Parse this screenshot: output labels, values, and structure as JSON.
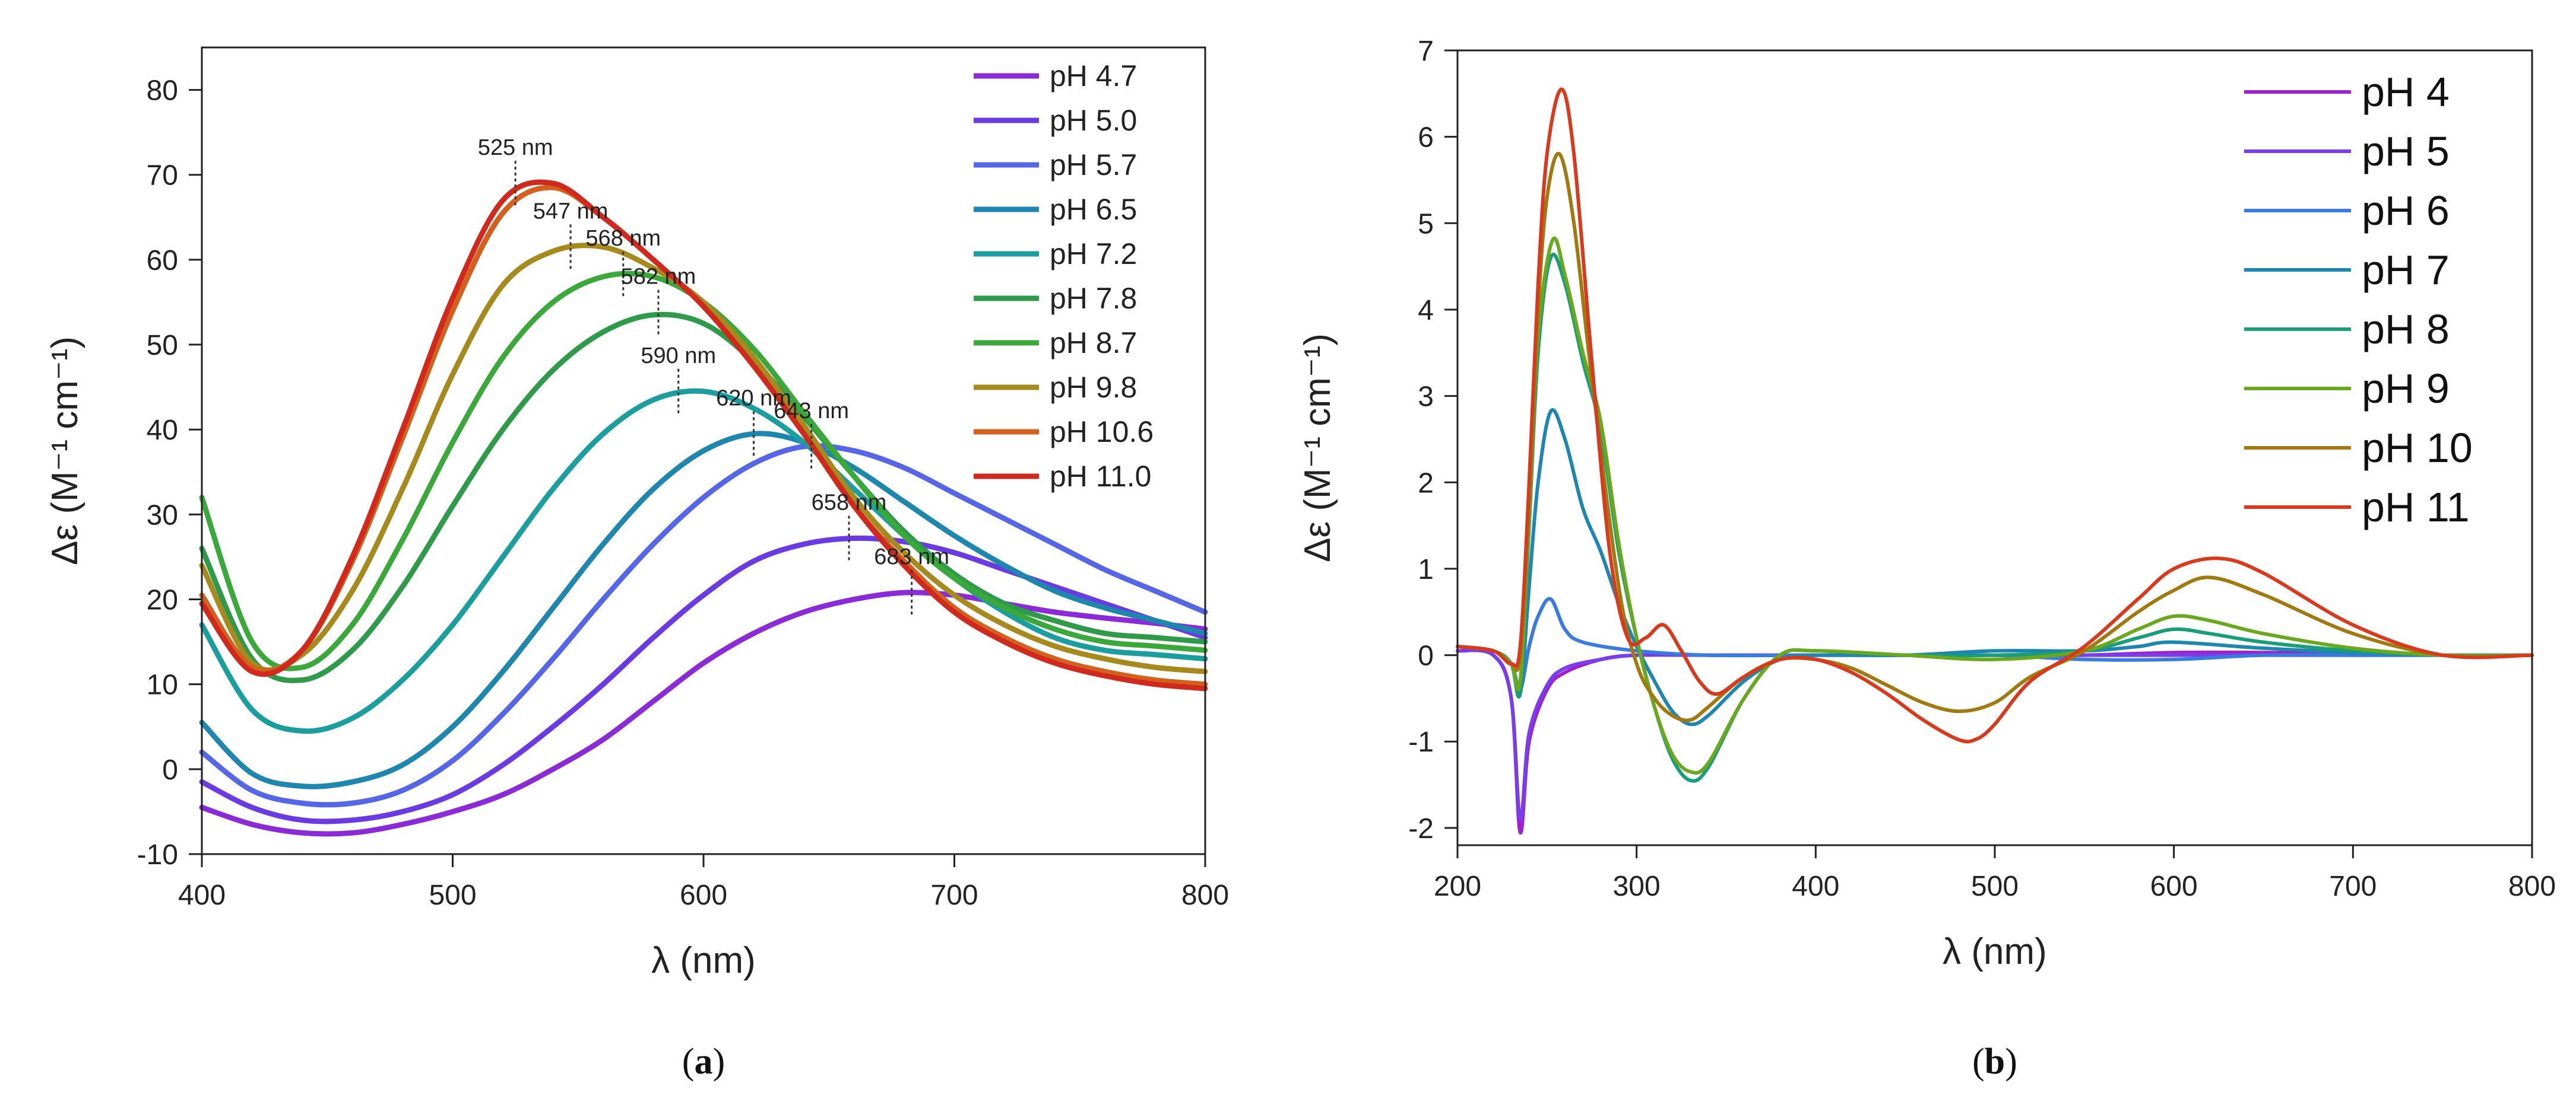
{
  "chart_data": [
    {
      "type": "line",
      "panel": "a",
      "caption_open": "(",
      "caption_letter": "a",
      "caption_close": ")",
      "xlabel": "λ (nm)",
      "ylabel": "Δε (M⁻¹ cm⁻¹)",
      "xlim": [
        400,
        800
      ],
      "ylim": [
        -10,
        85
      ],
      "xticks": [
        400,
        500,
        600,
        700,
        800
      ],
      "yticks": [
        -10,
        0,
        10,
        20,
        30,
        40,
        50,
        60,
        70,
        80
      ],
      "grid": false,
      "legend_position": "top-right",
      "series": [
        {
          "name": "pH 4.7",
          "color": "#8a2bd6",
          "x": [
            400,
            420,
            440,
            460,
            480,
            500,
            520,
            540,
            560,
            580,
            600,
            620,
            640,
            660,
            680,
            700,
            720,
            740,
            760,
            780,
            800
          ],
          "y": [
            -4.5,
            -6.5,
            -7.5,
            -7.5,
            -6.5,
            -5.0,
            -3.0,
            0.0,
            3.5,
            8.0,
            12.5,
            16.0,
            18.5,
            20.0,
            20.8,
            20.5,
            19.5,
            18.5,
            17.8,
            17.2,
            16.5
          ]
        },
        {
          "name": "pH 5.0",
          "color": "#6a3be0",
          "x": [
            400,
            420,
            440,
            460,
            480,
            500,
            520,
            540,
            560,
            580,
            600,
            620,
            640,
            660,
            680,
            700,
            720,
            740,
            760,
            780,
            800
          ],
          "y": [
            -1.5,
            -4.5,
            -6.0,
            -6.0,
            -5.0,
            -3.0,
            0.5,
            5.0,
            10.0,
            15.5,
            20.5,
            24.5,
            26.5,
            27.2,
            26.8,
            25.5,
            23.5,
            21.5,
            19.5,
            17.5,
            15.5
          ]
        },
        {
          "name": "pH 5.7",
          "color": "#5566e6",
          "x": [
            400,
            420,
            440,
            460,
            480,
            500,
            520,
            540,
            560,
            580,
            600,
            620,
            640,
            660,
            680,
            700,
            720,
            740,
            760,
            780,
            800
          ],
          "y": [
            2.0,
            -2.5,
            -4.0,
            -4.0,
            -2.5,
            1.0,
            6.5,
            13.0,
            20.0,
            26.5,
            32.0,
            36.0,
            38.0,
            37.5,
            35.5,
            32.5,
            29.5,
            26.5,
            23.5,
            21.0,
            18.5
          ]
        },
        {
          "name": "pH 6.5",
          "color": "#1f86ad",
          "x": [
            400,
            420,
            440,
            460,
            480,
            500,
            520,
            540,
            560,
            580,
            600,
            620,
            640,
            660,
            680,
            700,
            720,
            740,
            760,
            780,
            800
          ],
          "y": [
            5.5,
            -0.5,
            -2.0,
            -1.5,
            0.5,
            5.0,
            11.5,
            19.0,
            26.5,
            33.0,
            37.5,
            39.5,
            38.5,
            35.5,
            31.5,
            27.5,
            24.0,
            21.0,
            19.0,
            17.5,
            16.0
          ]
        },
        {
          "name": "pH 7.2",
          "color": "#1c9e9e",
          "x": [
            400,
            420,
            440,
            460,
            480,
            500,
            520,
            540,
            560,
            580,
            600,
            620,
            640,
            660,
            680,
            700,
            720,
            740,
            760,
            780,
            800
          ],
          "y": [
            17.0,
            7.0,
            4.5,
            6.0,
            10.5,
            17.0,
            25.0,
            33.0,
            39.5,
            43.5,
            44.5,
            42.5,
            38.5,
            33.0,
            27.5,
            22.5,
            18.5,
            15.5,
            14.0,
            13.5,
            13.0
          ]
        },
        {
          "name": "pH 7.8",
          "color": "#2e9a4a",
          "x": [
            400,
            420,
            440,
            460,
            480,
            500,
            520,
            540,
            560,
            580,
            600,
            620,
            640,
            660,
            680,
            700,
            720,
            740,
            760,
            780,
            800
          ],
          "y": [
            26.0,
            13.0,
            10.5,
            14.0,
            21.5,
            31.0,
            40.0,
            47.0,
            51.5,
            53.5,
            52.5,
            48.0,
            41.5,
            34.5,
            28.0,
            23.0,
            19.5,
            17.5,
            16.0,
            15.5,
            15.0
          ]
        },
        {
          "name": "pH 8.7",
          "color": "#3aa83a",
          "x": [
            400,
            420,
            440,
            460,
            480,
            500,
            520,
            540,
            560,
            580,
            600,
            620,
            640,
            660,
            680,
            700,
            720,
            740,
            760,
            780,
            800
          ],
          "y": [
            32.0,
            15.0,
            12.0,
            17.0,
            27.0,
            38.5,
            48.5,
            55.0,
            58.0,
            58.0,
            55.0,
            49.5,
            42.0,
            34.5,
            27.5,
            22.5,
            19.0,
            16.5,
            15.0,
            14.5,
            14.0
          ]
        },
        {
          "name": "pH 9.8",
          "color": "#a68a1e",
          "x": [
            400,
            420,
            440,
            460,
            480,
            500,
            520,
            540,
            560,
            580,
            600,
            620,
            640,
            660,
            680,
            700,
            720,
            740,
            760,
            780,
            800
          ],
          "y": [
            24.0,
            12.5,
            13.5,
            21.0,
            33.0,
            46.5,
            57.0,
            61.0,
            61.5,
            59.0,
            55.0,
            48.5,
            40.5,
            32.0,
            25.5,
            20.5,
            17.0,
            14.5,
            13.0,
            12.0,
            11.5
          ]
        },
        {
          "name": "pH 10.6",
          "color": "#d4601e",
          "x": [
            400,
            420,
            440,
            460,
            480,
            500,
            520,
            540,
            560,
            580,
            600,
            620,
            640,
            660,
            680,
            700,
            720,
            740,
            760,
            780,
            800
          ],
          "y": [
            20.5,
            12.0,
            14.0,
            24.5,
            39.0,
            54.0,
            65.5,
            68.5,
            65.0,
            60.0,
            54.5,
            47.5,
            39.5,
            31.0,
            24.5,
            19.0,
            15.5,
            13.0,
            11.5,
            10.5,
            10.0
          ]
        },
        {
          "name": "pH 11.0",
          "color": "#d02a1e",
          "x": [
            400,
            420,
            440,
            460,
            480,
            500,
            520,
            540,
            560,
            580,
            600,
            620,
            640,
            660,
            680,
            700,
            720,
            740,
            760,
            780,
            800
          ],
          "y": [
            19.5,
            11.5,
            14.0,
            25.0,
            40.0,
            55.5,
            67.0,
            69.0,
            65.0,
            60.0,
            54.5,
            47.5,
            39.5,
            31.0,
            24.0,
            18.5,
            15.0,
            12.5,
            11.0,
            10.0,
            9.5
          ]
        }
      ],
      "annotations": [
        {
          "label": "525 nm",
          "x": 525,
          "y": 69
        },
        {
          "label": "547 nm",
          "x": 547,
          "y": 61.5
        },
        {
          "label": "568 nm",
          "x": 568,
          "y": 58.3
        },
        {
          "label": "582 nm",
          "x": 582,
          "y": 53.8
        },
        {
          "label": "590 nm",
          "x": 590,
          "y": 44.5
        },
        {
          "label": "620 nm",
          "x": 620,
          "y": 39.5
        },
        {
          "label": "643 nm",
          "x": 643,
          "y": 38
        },
        {
          "label": "658 nm",
          "x": 658,
          "y": 27.2
        },
        {
          "label": "683 nm",
          "x": 683,
          "y": 20.8
        }
      ]
    },
    {
      "type": "line",
      "panel": "b",
      "caption_open": "(",
      "caption_letter": "b",
      "caption_close": ")",
      "xlabel": "λ (nm)",
      "ylabel": "Δε (M⁻¹ cm⁻¹)",
      "xlim": [
        200,
        800
      ],
      "ylim": [
        -2.2,
        7
      ],
      "xticks": [
        200,
        300,
        400,
        500,
        600,
        700,
        800
      ],
      "yticks": [
        -2,
        -1,
        0,
        1,
        2,
        3,
        4,
        5,
        6,
        7
      ],
      "grid": false,
      "legend_position": "top-right",
      "series": [
        {
          "name": "pH 4",
          "color": "#a020d0",
          "x": [
            200,
            220,
            230,
            235,
            240,
            250,
            260,
            280,
            300,
            340,
            400,
            450,
            500,
            550,
            600,
            650,
            700,
            750,
            800
          ],
          "y": [
            0.05,
            0.0,
            -0.5,
            -2.05,
            -1.0,
            -0.4,
            -0.2,
            -0.05,
            0.0,
            0.0,
            0.0,
            0.0,
            0.0,
            0.0,
            0.03,
            0.03,
            0.02,
            0.0,
            0.0
          ]
        },
        {
          "name": "pH 5",
          "color": "#7a3ee6",
          "x": [
            200,
            220,
            230,
            235,
            240,
            250,
            260,
            280,
            300,
            340,
            400,
            450,
            500,
            550,
            600,
            650,
            700,
            750,
            800
          ],
          "y": [
            0.05,
            0.0,
            -0.5,
            -1.9,
            -0.9,
            -0.35,
            -0.15,
            -0.05,
            0.0,
            0.0,
            0.0,
            0.0,
            0.0,
            0.0,
            0.0,
            0.0,
            0.0,
            0.0,
            0.0
          ]
        },
        {
          "name": "pH 6",
          "color": "#3a7be0",
          "x": [
            200,
            220,
            230,
            235,
            240,
            245,
            252,
            260,
            270,
            300,
            340,
            400,
            450,
            500,
            550,
            600,
            650,
            700,
            750,
            800
          ],
          "y": [
            0.1,
            0.05,
            -0.1,
            -0.4,
            0.1,
            0.45,
            0.65,
            0.3,
            0.15,
            0.05,
            0.0,
            0.0,
            0.0,
            0.0,
            -0.05,
            -0.05,
            0.0,
            0.0,
            0.0,
            0.0
          ]
        },
        {
          "name": "pH 7",
          "color": "#1f86b0",
          "x": [
            200,
            220,
            230,
            235,
            240,
            245,
            252,
            260,
            270,
            280,
            290,
            300,
            310,
            320,
            330,
            340,
            360,
            380,
            400,
            450,
            500,
            550,
            580,
            600,
            650,
            700,
            750,
            800
          ],
          "y": [
            0.1,
            0.05,
            -0.1,
            -0.45,
            0.8,
            2.0,
            2.82,
            2.5,
            1.7,
            1.2,
            0.6,
            0.1,
            -0.3,
            -0.65,
            -0.8,
            -0.7,
            -0.3,
            -0.05,
            0.0,
            0.0,
            0.05,
            0.05,
            0.1,
            0.15,
            0.08,
            0.03,
            0.0,
            0.0
          ]
        },
        {
          "name": "pH 8",
          "color": "#1a9e7a",
          "x": [
            200,
            220,
            230,
            235,
            240,
            245,
            252,
            260,
            270,
            280,
            290,
            300,
            310,
            320,
            330,
            340,
            360,
            380,
            400,
            450,
            500,
            550,
            580,
            600,
            620,
            650,
            700,
            750,
            800
          ],
          "y": [
            0.1,
            0.05,
            -0.1,
            -0.4,
            1.5,
            3.5,
            4.6,
            4.3,
            3.4,
            2.6,
            1.2,
            0.2,
            -0.6,
            -1.2,
            -1.45,
            -1.3,
            -0.5,
            0.0,
            0.05,
            0.0,
            0.0,
            0.05,
            0.2,
            0.3,
            0.25,
            0.15,
            0.05,
            0.0,
            0.0
          ]
        },
        {
          "name": "pH 9",
          "color": "#6aa820",
          "x": [
            200,
            220,
            230,
            235,
            240,
            245,
            253,
            260,
            270,
            280,
            290,
            300,
            310,
            320,
            330,
            340,
            360,
            380,
            400,
            450,
            500,
            550,
            580,
            600,
            620,
            650,
            700,
            750,
            800
          ],
          "y": [
            0.1,
            0.05,
            -0.1,
            -0.3,
            1.6,
            3.7,
            4.8,
            4.4,
            3.5,
            2.7,
            1.3,
            0.2,
            -0.6,
            -1.15,
            -1.35,
            -1.25,
            -0.5,
            0.0,
            0.05,
            0.0,
            -0.05,
            0.05,
            0.3,
            0.45,
            0.4,
            0.25,
            0.08,
            0.0,
            0.0
          ]
        },
        {
          "name": "pH 10",
          "color": "#a07a10",
          "x": [
            200,
            220,
            230,
            235,
            240,
            245,
            250,
            257,
            265,
            275,
            290,
            300,
            310,
            320,
            330,
            340,
            360,
            380,
            400,
            420,
            440,
            460,
            480,
            500,
            520,
            550,
            580,
            600,
            620,
            650,
            700,
            750,
            800
          ],
          "y": [
            0.1,
            0.05,
            -0.1,
            0.0,
            1.8,
            4.0,
            5.3,
            5.8,
            5.0,
            3.2,
            0.8,
            -0.1,
            -0.5,
            -0.7,
            -0.75,
            -0.6,
            -0.25,
            -0.05,
            -0.05,
            -0.15,
            -0.35,
            -0.55,
            -0.65,
            -0.55,
            -0.25,
            0.05,
            0.5,
            0.75,
            0.9,
            0.7,
            0.25,
            0.0,
            0.0
          ]
        },
        {
          "name": "pH 11",
          "color": "#d83a1e",
          "x": [
            200,
            220,
            230,
            235,
            240,
            245,
            250,
            258,
            265,
            275,
            285,
            295,
            305,
            315,
            325,
            335,
            345,
            360,
            380,
            400,
            420,
            440,
            460,
            480,
            490,
            500,
            520,
            550,
            580,
            600,
            625,
            650,
            700,
            750,
            800
          ],
          "y": [
            0.1,
            0.05,
            -0.1,
            0.1,
            2.0,
            4.3,
            5.8,
            6.55,
            5.8,
            3.4,
            1.2,
            0.2,
            0.2,
            0.35,
            0.05,
            -0.3,
            -0.45,
            -0.25,
            -0.05,
            -0.05,
            -0.2,
            -0.45,
            -0.75,
            -0.98,
            -0.97,
            -0.8,
            -0.3,
            0.1,
            0.65,
            1.0,
            1.12,
            0.95,
            0.35,
            0.0,
            0.0
          ]
        }
      ]
    }
  ]
}
